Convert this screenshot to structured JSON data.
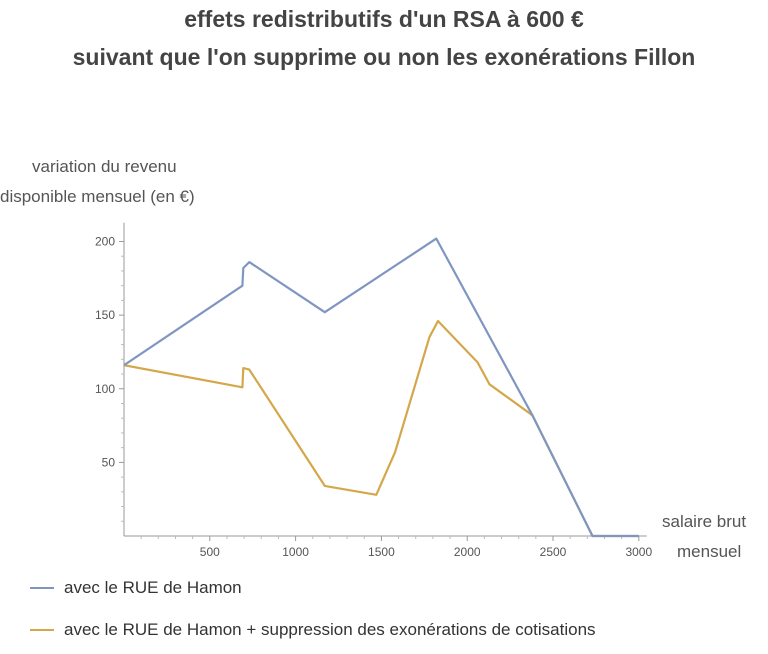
{
  "chart_data": {
    "type": "line",
    "title": "effets redistributifs d'un RSA à 600 €",
    "subtitle": "suivant que l'on supprime ou non les exonérations Fillon",
    "ylabel_lines": [
      "variation du revenu",
      "disponible mensuel (en €)"
    ],
    "xlabel_lines": [
      "salaire brut",
      "mensuel"
    ],
    "xlim": [
      0,
      3000
    ],
    "ylim": [
      0,
      210
    ],
    "xticks": [
      500,
      1000,
      1500,
      2000,
      2500,
      3000
    ],
    "yticks": [
      50,
      100,
      150,
      200
    ],
    "grid": false,
    "legend_position": "bottom",
    "series": [
      {
        "name": "avec le RUE de Hamon",
        "color": "#7f96c2",
        "points": [
          [
            0,
            116
          ],
          [
            690,
            170
          ],
          [
            695,
            182
          ],
          [
            730,
            186
          ],
          [
            1170,
            152
          ],
          [
            1820,
            202
          ],
          [
            2380,
            82
          ],
          [
            2730,
            0
          ],
          [
            3000,
            0
          ]
        ]
      },
      {
        "name": "avec le RUE de Hamon + suppression des exonérations de cotisations",
        "color": "#d4a84a",
        "points": [
          [
            0,
            116
          ],
          [
            690,
            101
          ],
          [
            695,
            114
          ],
          [
            730,
            113
          ],
          [
            1170,
            34
          ],
          [
            1470,
            28
          ],
          [
            1580,
            57
          ],
          [
            1780,
            135
          ],
          [
            1830,
            146
          ],
          [
            2060,
            118
          ],
          [
            2130,
            103
          ],
          [
            2380,
            82
          ],
          [
            2730,
            0
          ],
          [
            3000,
            0
          ]
        ]
      }
    ]
  }
}
